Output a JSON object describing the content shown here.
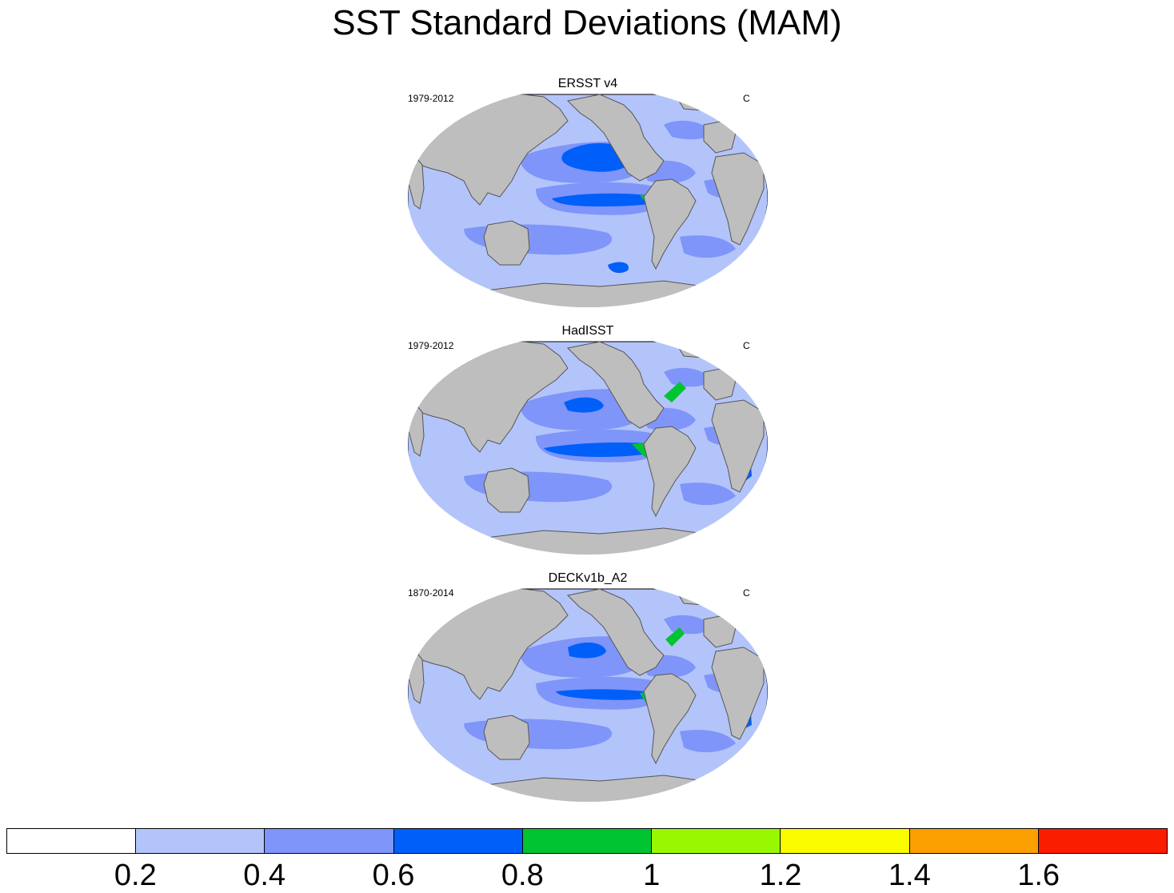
{
  "title": "SST Standard Deviations (MAM)",
  "panels": [
    {
      "name": "ERSST v4",
      "period": "1979-2012",
      "units": "C"
    },
    {
      "name": "HadISST",
      "period": "1979-2012",
      "units": "C"
    },
    {
      "name": "DECKv1b_A2",
      "period": "1870-2014",
      "units": "C"
    }
  ],
  "colorbar": {
    "colors": [
      "#ffffff",
      "#b3c4fb",
      "#7f95f9",
      "#005ff9",
      "#00c431",
      "#98f800",
      "#fbfb00",
      "#fba000",
      "#fb1d00"
    ],
    "labels": [
      "0.2",
      "0.4",
      "0.6",
      "0.8",
      "1",
      "1.2",
      "1.4",
      "1.6"
    ]
  },
  "colors": {
    "land": "#bebebe",
    "coast": "#555555"
  }
}
